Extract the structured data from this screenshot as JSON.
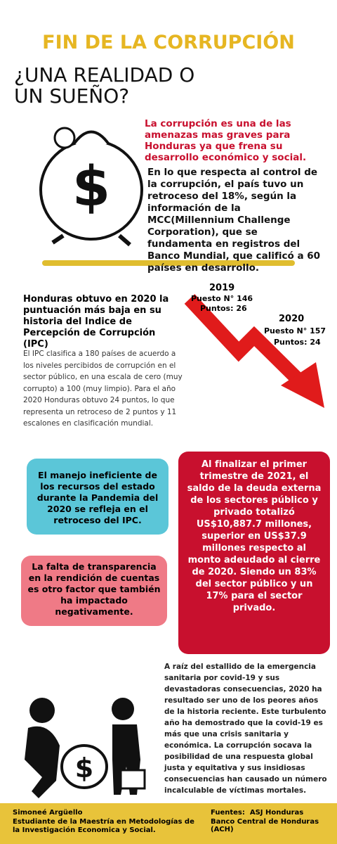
{
  "header": {
    "title": "FIN DE LA CORRUPCIÓN",
    "subtitle": "¿UNA REALIDAD O UN SUEÑO?"
  },
  "intro": {
    "highlight": "La corrupción es una de las amenazas mas graves para Honduras ya que frena su desarrollo económico y social.",
    "body": "En lo que respecta al control de la corrupción, el país tuvo un retroceso del 18%, según la información de la MCC(Millennium Challenge Corporation), que se fundamenta en registros del Banco Mundial, que calificó a 60 países en desarrollo."
  },
  "ipc": {
    "heading": "Honduras obtuvo en 2020 la puntuación más baja en su historia del Indice de Percepción de Corrupción (IPC)",
    "body": "El IPC clasifica a 180 países de acuerdo a los niveles percibidos de corrupción en el sector público, en una escala de cero (muy corrupto) a 100 (muy limpio). Para el año 2020 Honduras obtuvo 24 puntos, lo que representa un retroceso de 2 puntos y 11 escalones en clasificación mundial.",
    "years": [
      {
        "year": "2019",
        "rank": "Puesto N° 146",
        "points": "Puntos: 26"
      },
      {
        "year": "2020",
        "rank": "Puesto N° 157",
        "points": "Puntos: 24"
      }
    ]
  },
  "boxes": {
    "blue": "El manejo ineficiente de los recursos del estado durante la Pandemia del  2020 se refleja en el retroceso del IPC.",
    "pink": "La falta de transparencia en la rendición de cuentas es otro factor que también ha impactado negativamente.",
    "red": "Al finalizar el primer trimestre de 2021, el saldo de la deuda externa de los sectores público y privado totalizó US$10,887.7 millones, superior en US$37.9 millones respecto al monto adeudado al cierre de 2020. Siendo un 83%  del sector público y un 17% para el sector privado."
  },
  "closing": {
    "body": "A raíz del estallido de la emergencia sanitaria por covid-19 y sus devastadoras consecuencias, 2020 ha resultado ser uno de los peores años de la historia reciente. Este turbulento año ha demostrado que la covid-19 es más que una crisis sanitaria y económica. La corrupción socava la posibilidad de una respuesta global justa y equitativa y sus insidiosas consecuencias han causado un número incalculable de víctimas mortales."
  },
  "footer": {
    "author": "Simoneé Argüello",
    "affiliation": "Estudiante de la Maestría en Metodologías de la Investigación Economica y Social.",
    "sources": "Fuentes:  ASJ Honduras",
    "source2": "Banco Central de Honduras (ACH)"
  }
}
